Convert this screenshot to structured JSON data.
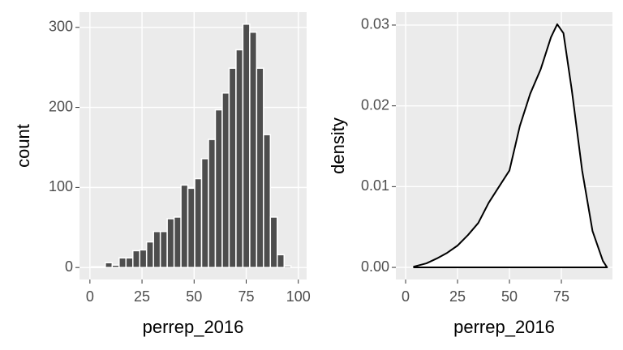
{
  "chart_data": [
    {
      "type": "histogram",
      "x_label": "perrep_2016",
      "y_label": "count",
      "bins": [
        0.8,
        4.1,
        7.4,
        10.7,
        14,
        17.3,
        20.6,
        23.9,
        27.2,
        30.5,
        33.8,
        37.1,
        40.4,
        43.7,
        47,
        50.3,
        53.6,
        56.9,
        60.2,
        63.5,
        66.8,
        70.1,
        73.4,
        76.7,
        80,
        83.3,
        86.6,
        89.9,
        93.2,
        96.5
      ],
      "values": [
        1,
        1,
        6,
        3,
        12,
        12,
        21,
        22,
        32,
        45,
        45,
        61,
        63,
        103,
        99,
        111,
        136,
        160,
        197,
        218,
        249,
        272,
        304,
        294,
        249,
        166,
        63,
        16,
        2
      ],
      "color": "#4d4d4d",
      "xlim": [
        -5,
        104
      ],
      "ylim": [
        -15,
        319
      ],
      "xticks": [
        0,
        25,
        50,
        75,
        100
      ],
      "yticks": [
        0,
        100,
        200,
        300
      ],
      "grid": true
    },
    {
      "type": "density",
      "x_label": "perrep_2016",
      "y_label": "density",
      "x": [
        4,
        10,
        15,
        20,
        25,
        30,
        35,
        40,
        45,
        50,
        55,
        60,
        65,
        70,
        73,
        76,
        80,
        85,
        90,
        95,
        97
      ],
      "values": [
        0.0001,
        0.0005,
        0.0011,
        0.0018,
        0.0027,
        0.004,
        0.0055,
        0.008,
        0.01,
        0.012,
        0.0175,
        0.0215,
        0.0245,
        0.0285,
        0.0301,
        0.029,
        0.022,
        0.012,
        0.0045,
        0.0008,
        0.0
      ],
      "color": "#000000",
      "xlim": [
        -4.7,
        99.6
      ],
      "ylim": [
        -0.0015,
        0.0316
      ],
      "xticks": [
        0,
        25,
        50,
        75
      ],
      "yticks": [
        {
          "value": 0,
          "label": "0.00"
        },
        {
          "value": 0.01,
          "label": "0.01"
        },
        {
          "value": 0.02,
          "label": "0.02"
        },
        {
          "value": 0.03,
          "label": "0.03"
        }
      ],
      "grid": true
    }
  ]
}
